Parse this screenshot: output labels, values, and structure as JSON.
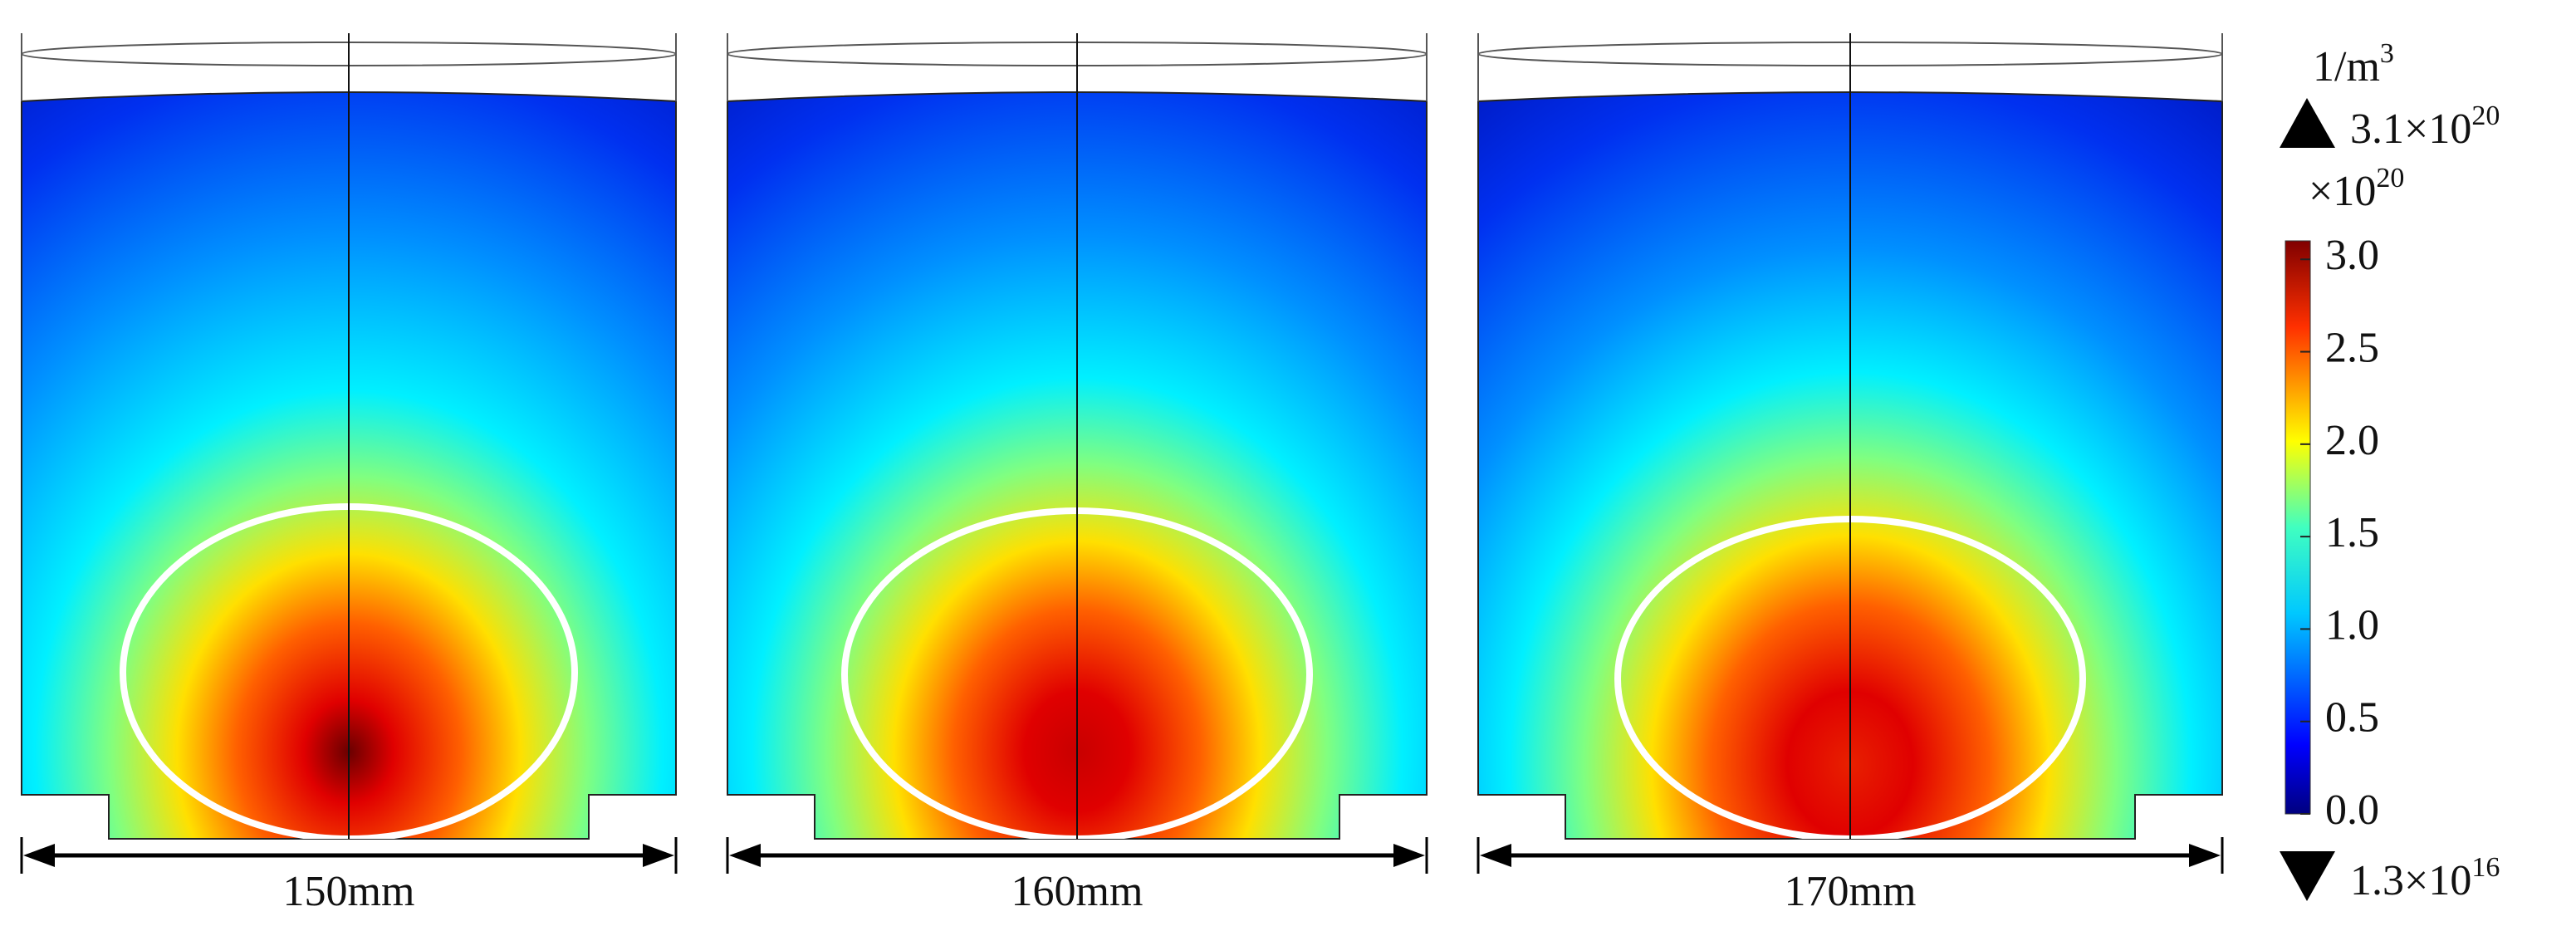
{
  "panels": [
    {
      "label": "150mm"
    },
    {
      "label": "160mm"
    },
    {
      "label": "170mm"
    }
  ],
  "colorbar": {
    "unit": "1/m",
    "unit_exp": "3",
    "max_label": "3.1×10",
    "max_exp": "20",
    "multiplier": "×10",
    "multiplier_exp": "20",
    "min_label": "1.3×10",
    "min_exp": "16",
    "range": [
      0,
      3.1
    ],
    "ticks": [
      {
        "value": 0,
        "label": "0.0"
      },
      {
        "value": 0.5,
        "label": "0.5"
      },
      {
        "value": 1,
        "label": "1.0"
      },
      {
        "value": 1.5,
        "label": "1.5"
      },
      {
        "value": 2,
        "label": "2.0"
      },
      {
        "value": 2.5,
        "label": "2.5"
      },
      {
        "value": 3,
        "label": "3.0"
      }
    ]
  }
}
